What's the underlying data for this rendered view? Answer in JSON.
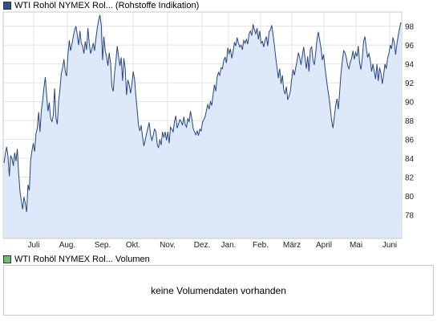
{
  "price_legend": {
    "label": "WTI Rohöl NYMEX Rol...",
    "sublabel": "(Rohstoffe Indikation)",
    "swatch_color": "#2f4f8f"
  },
  "volume_legend": {
    "label": "WTI Rohöl NYMEX Rol...",
    "sublabel": "Volumen",
    "swatch_color": "#6cbf6c"
  },
  "volume_panel": {
    "message": "keine Volumendaten vorhanden"
  },
  "chart_data": {
    "type": "area",
    "title": "",
    "xlabel": "",
    "ylabel": "",
    "ylim": [
      75.5,
      99.5
    ],
    "y_ticks": [
      78,
      80,
      82,
      84,
      86,
      88,
      90,
      92,
      94,
      96,
      98
    ],
    "y_axis_position": "right",
    "x_ticks": [
      "Juli",
      "Aug.",
      "Sep.",
      "Okt.",
      "Nov.",
      "Dez.",
      "Jan.",
      "Feb.",
      "März",
      "April",
      "Mai",
      "Juni"
    ],
    "grid": true,
    "line_color": "#24477f",
    "fill_color": "#dde8f8",
    "series": [
      {
        "values": [
          83.5,
          84.5,
          85.2,
          84.2,
          82.1,
          84.3,
          84.0,
          83.2,
          84.6,
          83.7,
          85.0,
          82.4,
          80.5,
          79.5,
          78.6,
          79.9,
          79.2,
          78.3,
          81.2,
          80.6,
          83.8,
          84.8,
          85.6,
          84.7,
          86.6,
          87.2,
          88.9,
          86.8,
          89.0,
          90.1,
          91.5,
          92.6,
          90.7,
          89.0,
          89.9,
          88.2,
          87.9,
          88.6,
          91.4,
          88.3,
          87.6,
          90.0,
          91.3,
          93.0,
          93.6,
          94.5,
          93.2,
          92.7,
          95.0,
          96.5,
          95.4,
          96.1,
          96.9,
          97.6,
          98.0,
          97.1,
          96.0,
          97.5,
          96.2,
          95.9,
          95.1,
          96.4,
          95.5,
          97.8,
          96.2,
          95.1,
          95.6,
          96.2,
          95.4,
          96.7,
          97.8,
          98.6,
          99.2,
          98.1,
          94.4,
          96.9,
          95.4,
          94.8,
          93.8,
          95.2,
          94.1,
          91.6,
          91.1,
          93.0,
          94.3,
          95.9,
          94.8,
          93.8,
          94.7,
          92.2,
          94.6,
          93.5,
          90.7,
          92.3,
          91.8,
          90.9,
          91.8,
          93.2,
          92.4,
          90.6,
          89.1,
          87.5,
          86.9,
          87.5,
          86.3,
          85.3,
          85.9,
          86.6,
          87.2,
          87.8,
          86.5,
          85.9,
          86.4,
          87.1,
          86.9,
          85.5,
          85.1,
          86.0,
          85.4,
          86.8,
          86.2,
          86.8,
          85.9,
          86.8,
          85.6,
          87.3,
          87.1,
          86.8,
          87.9,
          88.5,
          87.2,
          87.6,
          88.1,
          87.9,
          87.5,
          88.4,
          87.6,
          87.3,
          88.2,
          87.9,
          89.0,
          88.2,
          87.2,
          86.8,
          86.5,
          86.9,
          86.4,
          87.1,
          86.9,
          87.8,
          88.1,
          88.4,
          89.1,
          89.7,
          89.2,
          90.0,
          89.6,
          90.8,
          91.8,
          91.1,
          92.6,
          93.1,
          92.8,
          93.6,
          93.5,
          94.4,
          94.7,
          94.1,
          95.7,
          95.1,
          95.6,
          94.6,
          95.3,
          96.3,
          95.9,
          96.8,
          96.2,
          95.8,
          96.0,
          95.5,
          96.5,
          96.2,
          96.6,
          96.1,
          97.2,
          97.5,
          97.0,
          98.2,
          97.6,
          97.2,
          97.8,
          96.6,
          97.5,
          96.2,
          96.4,
          95.8,
          96.5,
          96.9,
          95.9,
          97.4,
          97.6,
          98.1,
          97.1,
          96.0,
          94.7,
          93.6,
          92.5,
          93.5,
          91.9,
          92.8,
          91.3,
          90.8,
          91.6,
          90.2,
          90.6,
          91.1,
          92.4,
          93.4,
          92.8,
          93.6,
          94.3,
          95.2,
          94.7,
          93.9,
          94.9,
          95.8,
          94.6,
          93.5,
          94.8,
          93.2,
          95.6,
          95.8,
          94.4,
          93.9,
          95.2,
          96.6,
          97.4,
          96.5,
          95.7,
          94.4,
          95.0,
          93.6,
          92.5,
          91.4,
          90.5,
          89.3,
          88.0,
          87.2,
          88.4,
          89.6,
          90.3,
          89.2,
          91.0,
          93.0,
          94.3,
          95.4,
          95.2,
          94.7,
          93.8,
          93.5,
          94.2,
          94.6,
          95.4,
          94.5,
          95.2,
          94.8,
          95.9,
          94.1,
          93.4,
          94.6,
          96.4,
          96.9,
          95.7,
          94.7,
          95.1,
          94.4,
          93.2,
          94.0,
          93.2,
          92.4,
          94.0,
          92.2,
          93.6,
          93.0,
          91.9,
          92.8,
          94.0,
          93.5,
          94.6,
          95.1,
          96.0,
          95.6,
          96.8,
          96.3,
          95.0,
          96.1,
          97.0,
          97.8,
          98.4
        ]
      }
    ]
  }
}
